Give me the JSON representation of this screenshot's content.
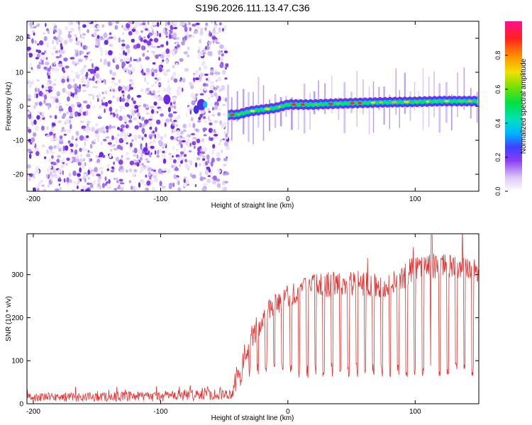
{
  "title": "S196.2026.111.13.47.C36",
  "chart_data": [
    {
      "type": "heatmap",
      "name": "spectrogram",
      "xlabel": "Height of straight line (km)",
      "ylabel": "Frequency (Hz)",
      "xlim": [
        -205,
        150
      ],
      "ylim": [
        -25,
        25
      ],
      "xticks": [
        -200,
        -100,
        0,
        100
      ],
      "xtick_labels": [
        "-200",
        "-100",
        "0",
        "100"
      ],
      "yticks": [
        -20,
        -10,
        0,
        10,
        20
      ],
      "ytick_labels": [
        "-20",
        "-10",
        "0",
        "10",
        "20"
      ],
      "noise_region_x": [
        -205,
        -47
      ],
      "signal_start_x": -47,
      "signal_ridge": {
        "x": [
          -47,
          -40,
          -30,
          -20,
          -10,
          0,
          20,
          40,
          60,
          80,
          100,
          120,
          150
        ],
        "freq": [
          -2.5,
          -2.5,
          -1.5,
          -1.0,
          -0.5,
          0.5,
          0.5,
          0.8,
          1.0,
          1.2,
          1.3,
          1.5,
          1.5
        ]
      },
      "colorbar": {
        "label": "Normalized spectral amplitude",
        "range": [
          0,
          1
        ],
        "ticks": [
          0.0,
          0.2,
          0.4,
          0.6,
          0.8
        ],
        "tick_labels": [
          "0.0",
          "0.2",
          "0.4",
          "0.6",
          "0.8"
        ]
      }
    },
    {
      "type": "line",
      "name": "snr",
      "color": "#e8302f",
      "xlabel": "Height of straight line (km)",
      "ylabel": "SNR (10 * v/v)",
      "xlim": [
        -205,
        150
      ],
      "ylim": [
        0,
        395
      ],
      "xticks": [
        -200,
        -100,
        0,
        100
      ],
      "xtick_labels": [
        "-200",
        "-100",
        "0",
        "100"
      ],
      "yticks": [
        0,
        100,
        200,
        300
      ],
      "ytick_labels": [
        "0",
        "100",
        "200",
        "300"
      ],
      "baseline_envelope": {
        "x": [
          -205,
          -100,
          -65,
          -45,
          -35,
          -30,
          -20,
          -10,
          0,
          20,
          40,
          60,
          80,
          90,
          100,
          120,
          150
        ],
        "lo": [
          5,
          5,
          8,
          10,
          40,
          55,
          60,
          65,
          60,
          60,
          60,
          60,
          60,
          60,
          60,
          60,
          60
        ],
        "hi": [
          30,
          35,
          45,
          40,
          120,
          160,
          200,
          240,
          260,
          285,
          290,
          290,
          285,
          300,
          330,
          330,
          320
        ]
      },
      "burst_spacing_km": 6.5,
      "peak": {
        "x": 113,
        "y": 392
      }
    }
  ]
}
